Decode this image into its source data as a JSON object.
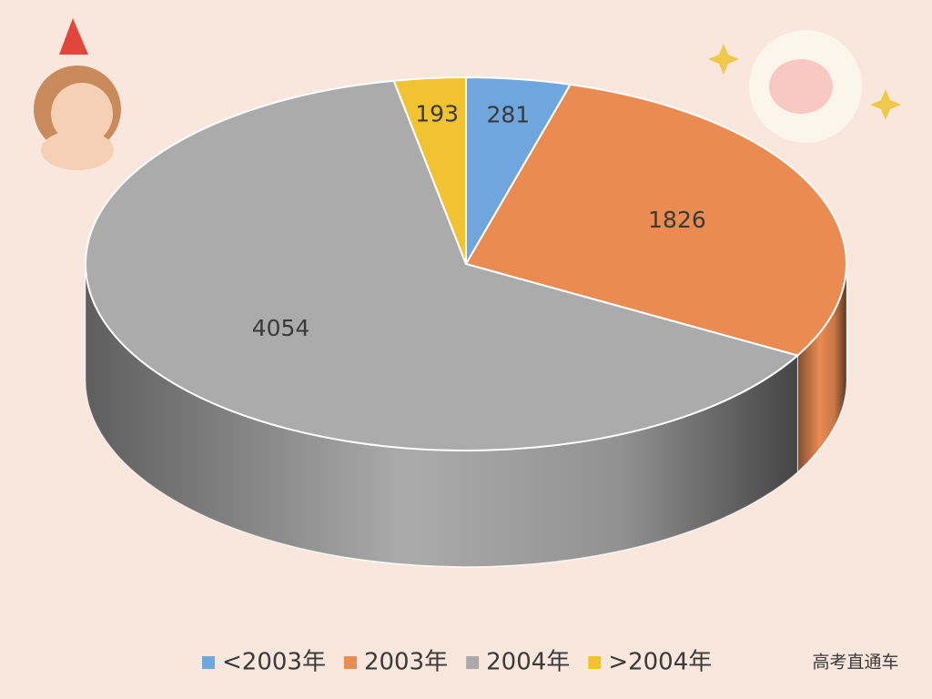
{
  "chart_data": {
    "type": "pie",
    "categories": [
      "<2003年",
      "2003年",
      "2004年",
      ">2004年"
    ],
    "values": [
      281,
      1826,
      4054,
      193
    ],
    "colors": [
      "#6fa6dd",
      "#ea8b52",
      "#ababab",
      "#f1c232"
    ],
    "legend": "bottom"
  },
  "watermark": "高考直通车"
}
